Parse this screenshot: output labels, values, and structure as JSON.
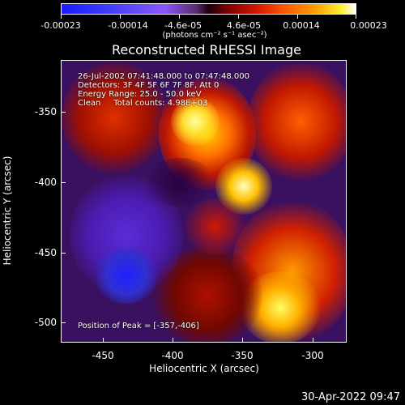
{
  "colorbar": {
    "ticks": [
      "-0.00023",
      "-0.00014",
      "-4.6e-05",
      "4.6e-05",
      "0.00014",
      "0.00023"
    ],
    "unit_label": "(photons cm⁻² s⁻¹ asec⁻²)"
  },
  "title": "Reconstructed RHESSI Image",
  "info": {
    "line1": "26-Jul-2002 07:41:48.000 to 07:47:48.000",
    "line2": "Detectors: 3F 4F 5F 6F 7F 8F, Att 0",
    "line3": "Energy Range: 25.0 - 50.0 keV",
    "line4": "Clean     Total counts: 4.98E+03",
    "peak": "Position of Peak = [-357,-406]"
  },
  "x_axis": {
    "label": "Heliocentric X (arcsec)",
    "ticks": [
      "-450",
      "-400",
      "-350",
      "-300"
    ]
  },
  "y_axis": {
    "label": "Heliocentric Y (arcsec)",
    "ticks": [
      "-350",
      "-400",
      "-450",
      "-500"
    ]
  },
  "timestamp": "30-Apr-2022 09:47"
}
